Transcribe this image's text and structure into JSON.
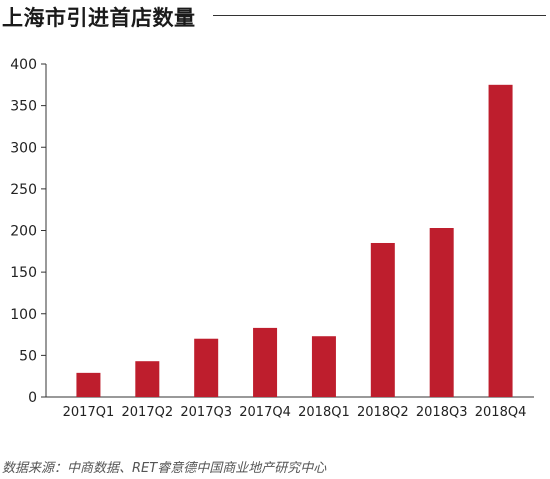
{
  "chart_data": {
    "type": "bar",
    "title": "上海市引进首店数量",
    "categories": [
      "2017Q1",
      "2017Q2",
      "2017Q3",
      "2017Q4",
      "2018Q1",
      "2018Q2",
      "2018Q3",
      "2018Q4"
    ],
    "values": [
      29,
      43,
      70,
      83,
      73,
      185,
      203,
      375
    ],
    "yticks": [
      0,
      50,
      100,
      150,
      200,
      250,
      300,
      350,
      400
    ],
    "ylim": [
      0,
      400
    ],
    "grid": false,
    "bar_color": "#be1e2d",
    "axis_color": "#333333"
  },
  "source": "数据来源：中商数据、RET睿意德中国商业地产研究中心"
}
